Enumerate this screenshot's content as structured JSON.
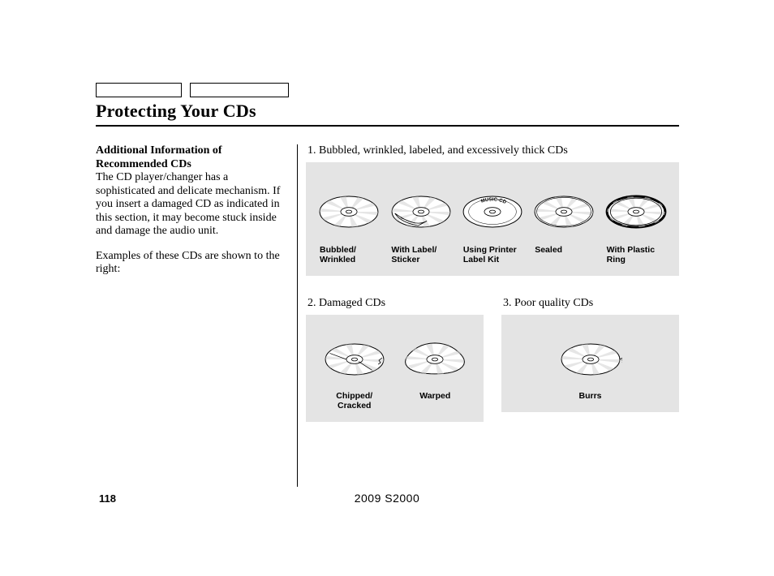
{
  "title": "Protecting Your CDs",
  "left": {
    "subhead": "Additional Information of Recommended CDs",
    "para1": "The CD player/changer has a sophisticated and delicate mechanism. If you insert a damaged CD as indicated in this section, it may become stuck inside and damage the audio unit.",
    "para2": "Examples of these CDs are shown to the right:"
  },
  "section1": {
    "title": "1. Bubbled, wrinkled, labeled, and excessively thick CDs",
    "items": [
      {
        "caption": "Bubbled/\nWrinkled",
        "kind": "bubbled"
      },
      {
        "caption": "With Label/\nSticker",
        "kind": "label"
      },
      {
        "caption": "Using Printer\nLabel Kit",
        "kind": "printer"
      },
      {
        "caption": "Sealed",
        "kind": "sealed"
      },
      {
        "caption": "With Plastic\nRing",
        "kind": "ring"
      }
    ]
  },
  "section2": {
    "title": "2. Damaged CDs",
    "items": [
      {
        "caption": "Chipped/\nCracked",
        "kind": "chipped"
      },
      {
        "caption": "Warped",
        "kind": "warped"
      }
    ]
  },
  "section3": {
    "title": "3.   Poor quality CDs",
    "items": [
      {
        "caption": "Burrs",
        "kind": "burrs"
      }
    ]
  },
  "page_number": "118",
  "footer": "2009  S2000",
  "colors": {
    "panel_bg": "#e4e4e4",
    "stroke": "#000000",
    "fill_light": "#ffffff",
    "fill_shade": "#d2d2d2"
  },
  "cd_svg": {
    "width": 78,
    "height": 50
  }
}
